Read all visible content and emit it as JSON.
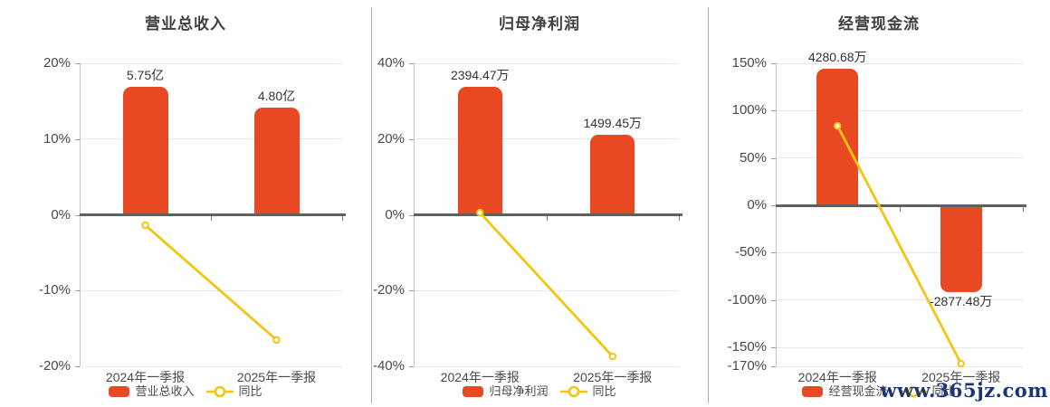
{
  "watermark": {
    "text": "www.365jz.com",
    "color": "#1a3578"
  },
  "colors": {
    "bar": "#e84923",
    "line": "#f2c511",
    "marker_fill": "#ffffff",
    "grid": "#e3e7f0",
    "zero_axis": "#606060",
    "axis": "#c2c6cc",
    "tick_mark": "#9a9da3",
    "x_tick_mark": "#777777",
    "separator": "#b3b3b3",
    "title_text": "#3f3f3f",
    "tick_text": "#4a4a4e",
    "value_text": "#333333",
    "background": "#ffffff"
  },
  "chart_data": [
    {
      "type": "bar",
      "title": "营业总收入",
      "categories": [
        "2024年一季报",
        "2025年一季报"
      ],
      "bar_series": {
        "name": "营业总收入",
        "value_labels": [
          "5.75亿",
          "4.80亿"
        ],
        "display_axis_pct": [
          16.9,
          14.1
        ]
      },
      "line_series": {
        "name": "同比",
        "values_pct": [
          -1.37,
          -16.52
        ]
      },
      "ylabel": "",
      "yticks": [
        "20%",
        "10%",
        "0%",
        "-10%",
        "-20%"
      ],
      "ytick_values": [
        20,
        10,
        0,
        -10,
        -20
      ],
      "ylim": [
        -20,
        20
      ],
      "grid": true,
      "legend_position": "bottom"
    },
    {
      "type": "bar",
      "title": "归母净利润",
      "categories": [
        "2024年一季报",
        "2025年一季报"
      ],
      "bar_series": {
        "name": "归母净利润",
        "value_labels": [
          "2394.47万",
          "1499.45万"
        ],
        "display_axis_pct": [
          33.8,
          21.1
        ]
      },
      "line_series": {
        "name": "同比",
        "values_pct": [
          0.57,
          -37.38
        ]
      },
      "ylabel": "",
      "yticks": [
        "40%",
        "20%",
        "0%",
        "-20%",
        "-40%"
      ],
      "ytick_values": [
        40,
        20,
        0,
        -20,
        -40
      ],
      "ylim": [
        -40,
        40
      ],
      "grid": true,
      "legend_position": "bottom"
    },
    {
      "type": "bar",
      "title": "经营现金流",
      "categories": [
        "2024年一季报",
        "2025年一季报"
      ],
      "bar_series": {
        "name": "经营现金流",
        "value_labels": [
          "4280.68万",
          "-2877.48万"
        ],
        "display_axis_pct": [
          144.5,
          -91.5
        ]
      },
      "line_series": {
        "name": "同比",
        "values_pct": [
          83.9,
          -167.22
        ]
      },
      "ylabel": "",
      "yticks": [
        "150%",
        "100%",
        "50%",
        "0%",
        "-50%",
        "-100%",
        "-150%",
        "-170%"
      ],
      "ytick_values": [
        150,
        100,
        50,
        0,
        -50,
        -100,
        -150,
        -170
      ],
      "ylim": [
        -170,
        150
      ],
      "grid": true,
      "legend_position": "bottom"
    }
  ]
}
